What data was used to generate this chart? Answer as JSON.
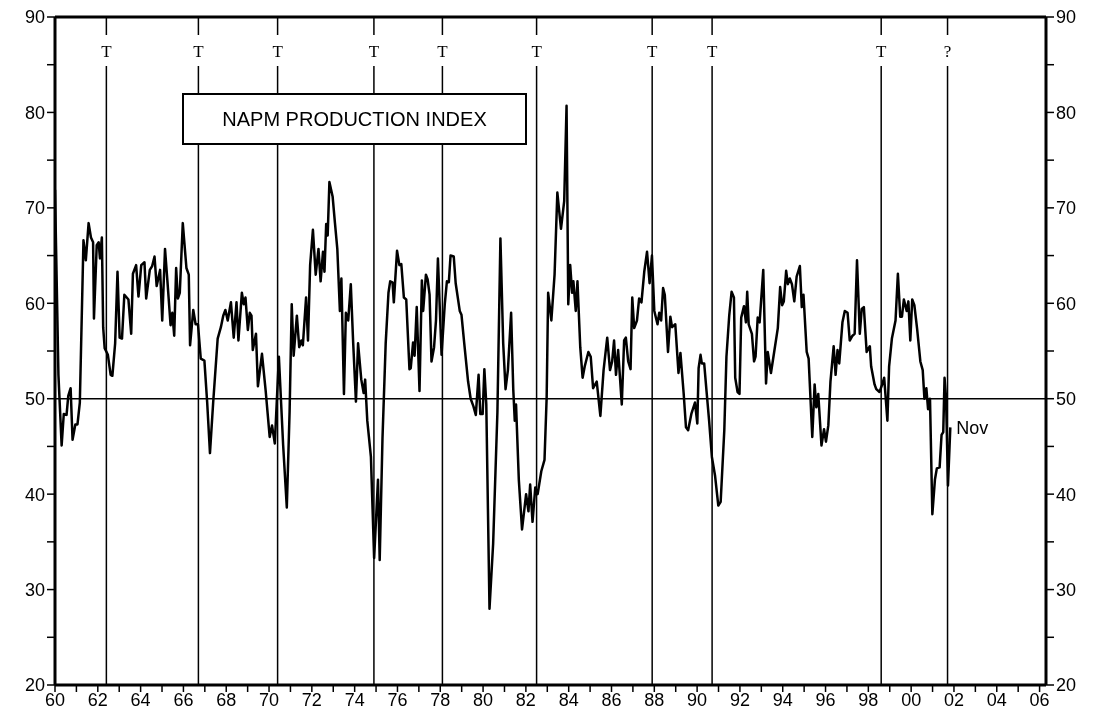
{
  "chart_data": {
    "type": "line",
    "title": "NAPM PRODUCTION INDEX",
    "x": [
      1960.0,
      1960.16,
      1960.31,
      1960.41,
      1960.54,
      1960.62,
      1960.73,
      1960.82,
      1960.95,
      1961.05,
      1961.16,
      1961.33,
      1961.44,
      1961.57,
      1961.68,
      1961.78,
      1961.82,
      1961.95,
      1962.04,
      1962.1,
      1962.19,
      1962.25,
      1962.32,
      1962.47,
      1962.6,
      1962.68,
      1962.81,
      1962.92,
      1963.02,
      1963.13,
      1963.24,
      1963.43,
      1963.56,
      1963.64,
      1963.79,
      1963.9,
      1964.03,
      1964.18,
      1964.26,
      1964.43,
      1964.54,
      1964.65,
      1964.75,
      1964.91,
      1965.01,
      1965.14,
      1965.25,
      1965.4,
      1965.48,
      1965.57,
      1965.66,
      1965.74,
      1965.83,
      1965.97,
      1966.14,
      1966.25,
      1966.31,
      1966.46,
      1966.57,
      1966.68,
      1966.81,
      1966.98,
      1967.11,
      1967.24,
      1967.39,
      1967.6,
      1967.75,
      1967.86,
      1967.96,
      1968.07,
      1968.22,
      1968.35,
      1968.48,
      1968.57,
      1968.73,
      1968.82,
      1968.9,
      1969.01,
      1969.1,
      1969.18,
      1969.24,
      1969.39,
      1969.48,
      1969.67,
      1969.84,
      1970.03,
      1970.14,
      1970.27,
      1970.46,
      1970.66,
      1970.83,
      1970.96,
      1971.06,
      1971.15,
      1971.3,
      1971.41,
      1971.51,
      1971.58,
      1971.73,
      1971.82,
      1971.92,
      1972.05,
      1972.18,
      1972.31,
      1972.41,
      1972.52,
      1972.59,
      1972.67,
      1972.74,
      1972.82,
      1972.97,
      1973.08,
      1973.19,
      1973.31,
      1973.38,
      1973.5,
      1973.59,
      1973.7,
      1973.82,
      1973.93,
      1974.06,
      1974.16,
      1974.31,
      1974.42,
      1974.49,
      1974.59,
      1974.76,
      1974.91,
      1975.09,
      1975.17,
      1975.3,
      1975.45,
      1975.58,
      1975.66,
      1975.77,
      1975.83,
      1975.98,
      1976.09,
      1976.18,
      1976.3,
      1976.41,
      1976.56,
      1976.62,
      1976.73,
      1976.8,
      1976.9,
      1977.03,
      1977.14,
      1977.2,
      1977.33,
      1977.41,
      1977.5,
      1977.59,
      1977.71,
      1977.8,
      1977.89,
      1978.06,
      1978.21,
      1978.31,
      1978.4,
      1978.48,
      1978.63,
      1978.72,
      1978.91,
      1978.99,
      1979.12,
      1979.3,
      1979.42,
      1979.55,
      1979.66,
      1979.79,
      1979.87,
      1979.98,
      1980.06,
      1980.15,
      1980.3,
      1980.47,
      1980.67,
      1980.81,
      1980.94,
      1981.05,
      1981.16,
      1981.31,
      1981.41,
      1981.48,
      1981.54,
      1981.67,
      1981.82,
      1982.01,
      1982.12,
      1982.2,
      1982.31,
      1982.44,
      1982.55,
      1982.72,
      1982.87,
      1982.97,
      1983.04,
      1983.19,
      1983.34,
      1983.47,
      1983.64,
      1983.79,
      1983.9,
      1983.98,
      1984.07,
      1984.16,
      1984.22,
      1984.33,
      1984.41,
      1984.54,
      1984.65,
      1984.75,
      1984.92,
      1985.03,
      1985.14,
      1985.31,
      1985.48,
      1985.63,
      1985.8,
      1985.93,
      1986.03,
      1986.12,
      1986.21,
      1986.31,
      1986.48,
      1986.59,
      1986.67,
      1986.78,
      1986.89,
      1986.97,
      1987.06,
      1987.19,
      1987.29,
      1987.4,
      1987.53,
      1987.66,
      1987.78,
      1987.89,
      1988.0,
      1988.15,
      1988.23,
      1988.32,
      1988.41,
      1988.49,
      1988.64,
      1988.75,
      1988.83,
      1988.98,
      1989.13,
      1989.22,
      1989.37,
      1989.48,
      1989.58,
      1989.73,
      1989.9,
      1990.01,
      1990.07,
      1990.16,
      1990.22,
      1990.33,
      1990.44,
      1990.56,
      1990.69,
      1990.84,
      1990.99,
      1991.1,
      1991.27,
      1991.37,
      1991.5,
      1991.61,
      1991.72,
      1991.78,
      1991.89,
      1991.98,
      1992.06,
      1992.19,
      1992.28,
      1992.34,
      1992.41,
      1992.56,
      1992.66,
      1992.73,
      1992.83,
      1992.92,
      1993.09,
      1993.22,
      1993.3,
      1993.45,
      1993.6,
      1993.77,
      1993.88,
      1993.97,
      1994.05,
      1994.16,
      1994.24,
      1994.33,
      1994.43,
      1994.54,
      1994.65,
      1994.8,
      1994.89,
      1994.97,
      1995.12,
      1995.21,
      1995.38,
      1995.49,
      1995.57,
      1995.66,
      1995.81,
      1995.93,
      1996.02,
      1996.13,
      1996.23,
      1996.38,
      1996.47,
      1996.56,
      1996.64,
      1996.79,
      1996.9,
      1997.03,
      1997.13,
      1997.26,
      1997.36,
      1997.47,
      1997.6,
      1997.69,
      1997.79,
      1997.92,
      1998.07,
      1998.13,
      1998.29,
      1998.37,
      1998.52,
      1998.65,
      1998.74,
      1998.89,
      1998.97,
      1999.1,
      1999.27,
      1999.38,
      1999.49,
      1999.57,
      1999.66,
      1999.79,
      1999.87,
      1999.96,
      2000.05,
      2000.15,
      2000.28,
      2000.43,
      2000.54,
      2000.62,
      2000.71,
      2000.79,
      2000.88,
      2000.99,
      2001.11,
      2001.2,
      2001.33,
      2001.42,
      2001.5,
      2001.56,
      2001.63,
      2001.72,
      2001.83
    ],
    "series": [
      {
        "color": "#000000",
        "values": [
          71.9,
          52.5,
          45.1,
          48.4,
          48.3,
          50.3,
          51.1,
          45.7,
          47.3,
          47.3,
          49.6,
          66.6,
          64.5,
          68.4,
          66.9,
          66.4,
          58.4,
          66.1,
          66.4,
          64.7,
          66.9,
          57.5,
          55.3,
          54.6,
          52.5,
          52.4,
          55.8,
          63.3,
          56.4,
          56.3,
          60.9,
          60.4,
          56.8,
          63.1,
          64.0,
          60.7,
          64.0,
          64.3,
          60.5,
          63.5,
          63.9,
          64.9,
          61.8,
          63.5,
          58.2,
          65.7,
          62.4,
          57.7,
          59.0,
          56.6,
          63.7,
          60.5,
          61.1,
          68.4,
          63.7,
          63.0,
          55.6,
          59.3,
          57.8,
          57.8,
          54.2,
          54.0,
          49.6,
          44.3,
          49.6,
          56.3,
          57.5,
          58.7,
          59.3,
          58.2,
          60.1,
          56.4,
          60.1,
          56.1,
          61.1,
          59.9,
          60.6,
          57.2,
          59.0,
          58.7,
          55.1,
          56.8,
          51.3,
          54.7,
          50.9,
          46.0,
          47.2,
          45.3,
          54.4,
          45.1,
          38.6,
          48.6,
          59.9,
          54.5,
          58.7,
          55.4,
          56.1,
          55.6,
          60.6,
          56.1,
          64.0,
          67.7,
          63.0,
          65.7,
          62.3,
          65.4,
          63.3,
          68.3,
          67.1,
          72.7,
          71.2,
          68.4,
          65.7,
          59.2,
          62.6,
          50.5,
          59.0,
          58.2,
          62.0,
          55.9,
          49.7,
          55.8,
          52.0,
          50.6,
          52.0,
          47.7,
          43.9,
          33.3,
          41.5,
          33.1,
          45.8,
          55.8,
          61.1,
          62.3,
          62.2,
          60.1,
          65.5,
          64.0,
          64.1,
          60.6,
          60.4,
          53.1,
          53.2,
          55.9,
          54.5,
          59.6,
          50.8,
          62.4,
          59.2,
          63.0,
          62.5,
          60.9,
          53.9,
          55.4,
          58.2,
          64.7,
          54.6,
          59.9,
          62.3,
          62.2,
          65.0,
          64.9,
          62.1,
          59.2,
          58.8,
          55.8,
          51.8,
          50.0,
          49.2,
          48.3,
          52.5,
          48.4,
          48.4,
          53.1,
          49.4,
          28.0,
          34.8,
          48.6,
          66.8,
          55.8,
          51.0,
          53.0,
          59.0,
          51.0,
          47.7,
          49.4,
          41.5,
          36.3,
          40.0,
          38.2,
          41.0,
          37.1,
          40.7,
          40.0,
          42.4,
          43.6,
          50.1,
          61.1,
          58.2,
          63.0,
          71.6,
          67.8,
          70.7,
          80.7,
          59.9,
          64.0,
          61.1,
          62.3,
          59.2,
          62.3,
          55.4,
          52.2,
          53.4,
          54.9,
          54.4,
          51.1,
          51.8,
          48.2,
          53.0,
          56.4,
          53.0,
          53.9,
          56.1,
          52.5,
          55.1,
          49.4,
          56.1,
          56.4,
          53.9,
          53.1,
          60.6,
          57.4,
          58.2,
          60.5,
          60.1,
          63.3,
          65.4,
          62.1,
          65.0,
          59.2,
          57.8,
          59.0,
          58.2,
          61.6,
          60.9,
          54.9,
          58.6,
          57.5,
          57.8,
          52.7,
          54.8,
          50.6,
          47.0,
          46.7,
          48.4,
          49.6,
          47.4,
          53.2,
          54.6,
          53.7,
          53.7,
          50.8,
          47.7,
          43.9,
          41.9,
          38.8,
          39.2,
          46.7,
          54.4,
          58.7,
          61.2,
          60.6,
          52.2,
          50.7,
          50.5,
          58.5,
          59.7,
          58.0,
          61.2,
          57.8,
          56.8,
          53.9,
          54.4,
          58.5,
          58.0,
          63.5,
          51.6,
          54.9,
          52.7,
          54.9,
          57.4,
          61.7,
          59.8,
          60.2,
          63.4,
          62.0,
          62.6,
          62.0,
          60.2,
          62.8,
          63.9,
          59.6,
          60.9,
          54.9,
          54.2,
          46.0,
          51.5,
          49.1,
          50.5,
          45.1,
          46.8,
          45.5,
          47.2,
          51.8,
          55.5,
          52.5,
          55.1,
          53.7,
          58.0,
          59.2,
          59.0,
          56.1,
          56.6,
          56.8,
          64.5,
          56.8,
          59.4,
          59.6,
          54.9,
          55.5,
          53.4,
          51.5,
          51.0,
          50.7,
          51.5,
          52.2,
          47.7,
          53.4,
          56.3,
          58.2,
          63.1,
          58.6,
          58.6,
          60.4,
          59.2,
          60.2,
          56.1,
          60.4,
          59.8,
          57.3,
          53.9,
          53.0,
          50.0,
          51.1,
          48.9,
          50.0,
          37.9,
          41.5,
          42.7,
          42.8,
          46.2,
          46.5,
          52.2,
          50.1,
          40.9,
          47.0
        ]
      }
    ],
    "xlim": [
      1960,
      2006.3
    ],
    "xticks": [
      {
        "value": 1960,
        "label": "60"
      },
      {
        "value": 1961,
        "label": null
      },
      {
        "value": 1962,
        "label": "62"
      },
      {
        "value": 1963,
        "label": null
      },
      {
        "value": 1964,
        "label": "64"
      },
      {
        "value": 1965,
        "label": null
      },
      {
        "value": 1966,
        "label": "66"
      },
      {
        "value": 1967,
        "label": null
      },
      {
        "value": 1968,
        "label": "68"
      },
      {
        "value": 1969,
        "label": null
      },
      {
        "value": 1970,
        "label": "70"
      },
      {
        "value": 1971,
        "label": null
      },
      {
        "value": 1972,
        "label": "72"
      },
      {
        "value": 1973,
        "label": null
      },
      {
        "value": 1974,
        "label": "74"
      },
      {
        "value": 1975,
        "label": null
      },
      {
        "value": 1976,
        "label": "76"
      },
      {
        "value": 1977,
        "label": null
      },
      {
        "value": 1978,
        "label": "78"
      },
      {
        "value": 1979,
        "label": null
      },
      {
        "value": 1980,
        "label": "80"
      },
      {
        "value": 1981,
        "label": null
      },
      {
        "value": 1982,
        "label": "82"
      },
      {
        "value": 1983,
        "label": null
      },
      {
        "value": 1984,
        "label": "84"
      },
      {
        "value": 1985,
        "label": null
      },
      {
        "value": 1986,
        "label": "86"
      },
      {
        "value": 1987,
        "label": null
      },
      {
        "value": 1988,
        "label": "88"
      },
      {
        "value": 1989,
        "label": null
      },
      {
        "value": 1990,
        "label": "90"
      },
      {
        "value": 1991,
        "label": null
      },
      {
        "value": 1992,
        "label": "92"
      },
      {
        "value": 1993,
        "label": null
      },
      {
        "value": 1994,
        "label": "94"
      },
      {
        "value": 1995,
        "label": null
      },
      {
        "value": 1996,
        "label": "96"
      },
      {
        "value": 1997,
        "label": null
      },
      {
        "value": 1998,
        "label": "98"
      },
      {
        "value": 1999,
        "label": null
      },
      {
        "value": 2000,
        "label": "00"
      },
      {
        "value": 2001,
        "label": null
      },
      {
        "value": 2002,
        "label": "02"
      },
      {
        "value": 2003,
        "label": null
      },
      {
        "value": 2004,
        "label": "04"
      },
      {
        "value": 2005,
        "label": null
      },
      {
        "value": 2006,
        "label": "06"
      }
    ],
    "ylim": [
      20,
      90
    ],
    "yticks": [
      20,
      {
        "value": 25,
        "label": null
      },
      30,
      {
        "value": 35,
        "label": null
      },
      40,
      {
        "value": 45,
        "label": null
      },
      50,
      {
        "value": 55,
        "label": null
      },
      60,
      {
        "value": 65,
        "label": null
      },
      70,
      {
        "value": 75,
        "label": null
      },
      80,
      {
        "value": 85,
        "label": null
      },
      90
    ],
    "y2lim": [
      20,
      90
    ],
    "y2ticks": [
      20,
      {
        "value": 25,
        "label": null
      },
      30,
      {
        "value": 35,
        "label": null
      },
      40,
      {
        "value": 45,
        "label": null
      },
      50,
      {
        "value": 55,
        "label": null
      },
      60,
      {
        "value": 65,
        "label": null
      },
      70,
      {
        "value": 75,
        "label": null
      },
      80,
      {
        "value": 85,
        "label": null
      },
      90
    ],
    "ref_lines": [
      {
        "axis": "y",
        "value": 50,
        "color": "#000000"
      },
      {
        "axis": "x",
        "value": 1962.4,
        "label": "T",
        "color": "#000000"
      },
      {
        "axis": "x",
        "value": 1966.7,
        "label": "T",
        "color": "#000000"
      },
      {
        "axis": "x",
        "value": 1970.4,
        "label": "T",
        "color": "#000000"
      },
      {
        "axis": "x",
        "value": 1974.9,
        "label": "T",
        "color": "#000000"
      },
      {
        "axis": "x",
        "value": 1978.1,
        "label": "T",
        "color": "#000000"
      },
      {
        "axis": "x",
        "value": 1982.5,
        "label": "T",
        "color": "#000000"
      },
      {
        "axis": "x",
        "value": 1987.9,
        "label": "T",
        "color": "#000000"
      },
      {
        "axis": "x",
        "value": 1990.7,
        "label": "T",
        "color": "#000000"
      },
      {
        "axis": "x",
        "value": 1998.6,
        "label": "T",
        "color": "#000000"
      },
      {
        "axis": "x",
        "value": 2001.7,
        "label": "?",
        "color": "#000000"
      }
    ],
    "annotations": [
      {
        "text": "Nov",
        "x": 2001.83,
        "y": 47
      }
    ],
    "marker": "none",
    "line_style": "solid"
  }
}
